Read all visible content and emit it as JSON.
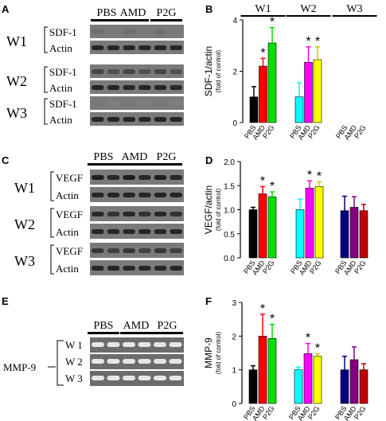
{
  "panels": {
    "A": {
      "letter": "A",
      "lanes": [
        "PBS",
        "AMD",
        "P2G"
      ],
      "groups": [
        {
          "name": "W1",
          "bands": [
            "SDF-1",
            "Actin"
          ]
        },
        {
          "name": "W2",
          "bands": [
            "SDF-1",
            "Actin"
          ]
        },
        {
          "name": "W3",
          "bands": [
            "SDF-1",
            "Actin"
          ]
        }
      ]
    },
    "C": {
      "letter": "C",
      "lanes": [
        "PBS",
        "AMD",
        "P2G"
      ],
      "groups": [
        {
          "name": "W1",
          "bands": [
            "VEGF",
            "Actin"
          ]
        },
        {
          "name": "W2",
          "bands": [
            "VEGF",
            "Actin"
          ]
        },
        {
          "name": "W3",
          "bands": [
            "VEGF",
            "Actin"
          ]
        }
      ]
    },
    "E": {
      "letter": "E",
      "lanes": [
        "PBS",
        "AMD",
        "P2G"
      ],
      "label": "MMP-9",
      "rows": [
        "W 1",
        "W 2",
        "W 3"
      ]
    }
  },
  "colors": {
    "PBS": [
      "#000000",
      "#00ffff",
      "#000080"
    ],
    "AMD": [
      "#ff0000",
      "#ff00ff",
      "#800080"
    ],
    "P2G": [
      "#00e000",
      "#ffff00",
      "#c00000"
    ]
  },
  "chart_data": [
    {
      "panel": "B",
      "type": "bar",
      "ylabel": "SDF-1/actin",
      "ylabel_sub": "(fold of control)",
      "ylim": [
        0,
        4
      ],
      "yticks": [
        "0",
        "2",
        "4"
      ],
      "group_labels": [
        "W1",
        "W2",
        "W3"
      ],
      "categories": [
        "PBS",
        "AMD",
        "P2G"
      ],
      "groups": [
        {
          "name": "W1",
          "values": [
            1.0,
            2.2,
            3.1
          ],
          "errors": [
            0.4,
            0.3,
            0.6
          ],
          "stars": [
            false,
            true,
            true
          ]
        },
        {
          "name": "W2",
          "values": [
            1.0,
            2.35,
            2.45
          ],
          "errors": [
            0.55,
            0.6,
            0.5
          ],
          "stars": [
            false,
            true,
            true
          ]
        },
        {
          "name": "W3",
          "values": [
            0,
            0,
            0
          ],
          "errors": [
            0,
            0,
            0
          ],
          "stars": [
            false,
            false,
            false
          ]
        }
      ]
    },
    {
      "panel": "D",
      "type": "bar",
      "ylabel": "VEGF/actin",
      "ylabel_sub": "(fold of control)",
      "ylim": [
        0,
        2.0
      ],
      "yticks": [
        "0.0",
        "0.5",
        "1.0",
        "1.5",
        "2.0"
      ],
      "categories": [
        "PBS",
        "AMD",
        "P2G"
      ],
      "groups": [
        {
          "name": "W1",
          "values": [
            1.0,
            1.33,
            1.27
          ],
          "errors": [
            0.05,
            0.15,
            0.1
          ],
          "stars": [
            false,
            true,
            true
          ]
        },
        {
          "name": "W2",
          "values": [
            1.0,
            1.45,
            1.48
          ],
          "errors": [
            0.22,
            0.15,
            0.1
          ],
          "stars": [
            false,
            true,
            true
          ]
        },
        {
          "name": "W3",
          "values": [
            0.98,
            1.05,
            0.98
          ],
          "errors": [
            0.3,
            0.22,
            0.13
          ],
          "stars": [
            false,
            false,
            false
          ]
        }
      ]
    },
    {
      "panel": "F",
      "type": "bar",
      "ylabel": "MMP-9",
      "ylabel_sub": "(fold of control)",
      "ylim": [
        0,
        3
      ],
      "yticks": [
        "0",
        "1",
        "2",
        "3"
      ],
      "categories": [
        "PBS",
        "AMD",
        "P2G"
      ],
      "groups": [
        {
          "name": "W1",
          "values": [
            1.0,
            2.0,
            1.93
          ],
          "errors": [
            0.12,
            0.65,
            0.42
          ],
          "stars": [
            false,
            true,
            true
          ]
        },
        {
          "name": "W2",
          "values": [
            1.0,
            1.48,
            1.4
          ],
          "errors": [
            0.08,
            0.3,
            0.08
          ],
          "stars": [
            false,
            true,
            true
          ]
        },
        {
          "name": "W3",
          "values": [
            1.0,
            1.3,
            1.0
          ],
          "errors": [
            0.4,
            0.38,
            0.18
          ],
          "stars": [
            false,
            false,
            false
          ]
        }
      ]
    }
  ]
}
